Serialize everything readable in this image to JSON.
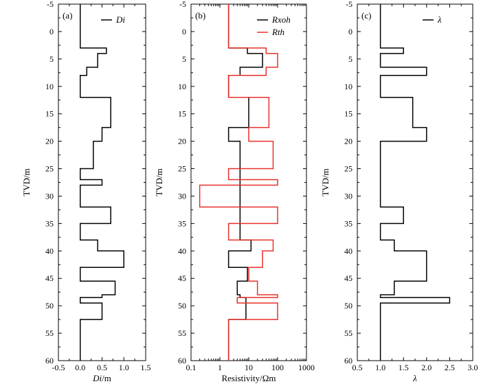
{
  "figure": {
    "y_axis_label": "TVD/m",
    "y_ticks": [
      -5,
      0,
      5,
      10,
      15,
      20,
      25,
      30,
      35,
      40,
      45,
      50,
      55,
      60
    ]
  },
  "chart_data": [
    {
      "type": "line",
      "panel_label": "(a)",
      "title": "",
      "xlabel": {
        "italic": "Di",
        "rest": "/m"
      },
      "ylabel": "TVD/m",
      "xscale": "linear",
      "xlim": [
        -0.5,
        1.5
      ],
      "ylim": [
        60,
        -5
      ],
      "xticks": [
        -0.5,
        0.0,
        0.5,
        1.0,
        1.5
      ],
      "xtick_labels": [
        "-0.5",
        "0.0",
        "0.5",
        "1.0",
        "1.5"
      ],
      "yticks": [
        -5,
        0,
        5,
        10,
        15,
        20,
        25,
        30,
        35,
        40,
        45,
        50,
        55,
        60
      ],
      "legend_position": "top-right",
      "series": [
        {
          "name": "Di",
          "color": "#000000",
          "depth_top": -5,
          "depth_bottom": 60,
          "steps": [
            {
              "to": 3.0,
              "value": 0.0
            },
            {
              "to": 4.0,
              "value": 0.6
            },
            {
              "to": 6.5,
              "value": 0.4
            },
            {
              "to": 8.0,
              "value": 0.15
            },
            {
              "to": 12.0,
              "value": 0.0
            },
            {
              "to": 17.5,
              "value": 0.7
            },
            {
              "to": 20.0,
              "value": 0.5
            },
            {
              "to": 25.0,
              "value": 0.3
            },
            {
              "to": 27.0,
              "value": 0.0
            },
            {
              "to": 28.0,
              "value": 0.5
            },
            {
              "to": 32.0,
              "value": 0.0
            },
            {
              "to": 35.0,
              "value": 0.7
            },
            {
              "to": 38.0,
              "value": 0.0
            },
            {
              "to": 40.0,
              "value": 0.4
            },
            {
              "to": 43.0,
              "value": 1.0
            },
            {
              "to": 45.5,
              "value": 0.0
            },
            {
              "to": 48.0,
              "value": 0.8
            },
            {
              "to": 48.5,
              "value": 0.5
            },
            {
              "to": 49.5,
              "value": 0.0
            },
            {
              "to": 52.5,
              "value": 0.5
            },
            {
              "to": 60.0,
              "value": 0.0
            }
          ]
        }
      ]
    },
    {
      "type": "line",
      "panel_label": "(b)",
      "title": "",
      "xlabel": {
        "italic": "",
        "rest": "Resistivity/Ωm"
      },
      "ylabel": "TVD/m",
      "xscale": "log",
      "xlim": [
        0.1,
        1000
      ],
      "ylim": [
        60,
        -5
      ],
      "xticks": [
        0.1,
        1,
        10,
        100,
        1000
      ],
      "xtick_labels": [
        "0.1",
        "1",
        "10",
        "100",
        "1000"
      ],
      "yticks": [
        -5,
        0,
        5,
        10,
        15,
        20,
        25,
        30,
        35,
        40,
        45,
        50,
        55,
        60
      ],
      "legend_position": "top-right",
      "series": [
        {
          "name": "Rxoh",
          "color": "#000000",
          "depth_top": -5,
          "depth_bottom": 60,
          "steps": [
            {
              "to": 3.0,
              "value": 2
            },
            {
              "to": 4.0,
              "value": 9
            },
            {
              "to": 6.5,
              "value": 30
            },
            {
              "to": 8.0,
              "value": 5
            },
            {
              "to": 12.0,
              "value": 2
            },
            {
              "to": 17.5,
              "value": 10
            },
            {
              "to": 20.0,
              "value": 2
            },
            {
              "to": 25.0,
              "value": 5
            },
            {
              "to": 28.0,
              "value": 5
            },
            {
              "to": 32.0,
              "value": 5
            },
            {
              "to": 35.0,
              "value": 5
            },
            {
              "to": 38.0,
              "value": 5
            },
            {
              "to": 40.0,
              "value": 12
            },
            {
              "to": 43.0,
              "value": 2
            },
            {
              "to": 45.5,
              "value": 9
            },
            {
              "to": 48.0,
              "value": 4
            },
            {
              "to": 48.5,
              "value": 5
            },
            {
              "to": 49.5,
              "value": 8
            },
            {
              "to": 52.5,
              "value": 8
            },
            {
              "to": 60.0,
              "value": 2
            }
          ]
        },
        {
          "name": "Rth",
          "color": "#e8302a",
          "depth_top": -5,
          "depth_bottom": 60,
          "steps": [
            {
              "to": 3.0,
              "value": 2
            },
            {
              "to": 4.0,
              "value": 40
            },
            {
              "to": 6.5,
              "value": 100
            },
            {
              "to": 8.0,
              "value": 40
            },
            {
              "to": 12.0,
              "value": 2
            },
            {
              "to": 17.5,
              "value": 50
            },
            {
              "to": 20.0,
              "value": 10
            },
            {
              "to": 25.0,
              "value": 70
            },
            {
              "to": 27.0,
              "value": 2
            },
            {
              "to": 28.0,
              "value": 100
            },
            {
              "to": 32.0,
              "value": 0.2
            },
            {
              "to": 35.0,
              "value": 100
            },
            {
              "to": 38.0,
              "value": 2
            },
            {
              "to": 40.0,
              "value": 70
            },
            {
              "to": 43.0,
              "value": 30
            },
            {
              "to": 45.5,
              "value": 10
            },
            {
              "to": 48.0,
              "value": 20
            },
            {
              "to": 48.5,
              "value": 100
            },
            {
              "to": 49.5,
              "value": 4
            },
            {
              "to": 52.5,
              "value": 100
            },
            {
              "to": 60.0,
              "value": 2
            }
          ]
        }
      ]
    },
    {
      "type": "line",
      "panel_label": "(c)",
      "title": "",
      "xlabel": {
        "italic": "λ",
        "rest": ""
      },
      "ylabel": "TVD/m",
      "xscale": "linear",
      "xlim": [
        0.5,
        3.0
      ],
      "ylim": [
        60,
        -5
      ],
      "xticks": [
        0.5,
        1.0,
        1.5,
        2.0,
        2.5,
        3.0
      ],
      "xtick_labels": [
        "0.5",
        "1.0",
        "1.5",
        "2.0",
        "2.5",
        "3.0"
      ],
      "yticks": [
        -5,
        0,
        5,
        10,
        15,
        20,
        25,
        30,
        35,
        40,
        45,
        50,
        55,
        60
      ],
      "legend_position": "top-right",
      "series": [
        {
          "name": "λ",
          "color": "#000000",
          "depth_top": -5,
          "depth_bottom": 60,
          "steps": [
            {
              "to": 3.0,
              "value": 1.0
            },
            {
              "to": 4.0,
              "value": 1.5
            },
            {
              "to": 6.5,
              "value": 1.0
            },
            {
              "to": 8.0,
              "value": 2.0
            },
            {
              "to": 12.0,
              "value": 1.0
            },
            {
              "to": 17.5,
              "value": 1.7
            },
            {
              "to": 20.0,
              "value": 2.0
            },
            {
              "to": 32.0,
              "value": 1.0
            },
            {
              "to": 35.0,
              "value": 1.5
            },
            {
              "to": 38.0,
              "value": 1.0
            },
            {
              "to": 40.0,
              "value": 1.3
            },
            {
              "to": 45.5,
              "value": 2.0
            },
            {
              "to": 48.0,
              "value": 1.3
            },
            {
              "to": 48.5,
              "value": 1.0
            },
            {
              "to": 49.5,
              "value": 2.5
            },
            {
              "to": 60.0,
              "value": 1.0
            }
          ]
        }
      ]
    }
  ]
}
